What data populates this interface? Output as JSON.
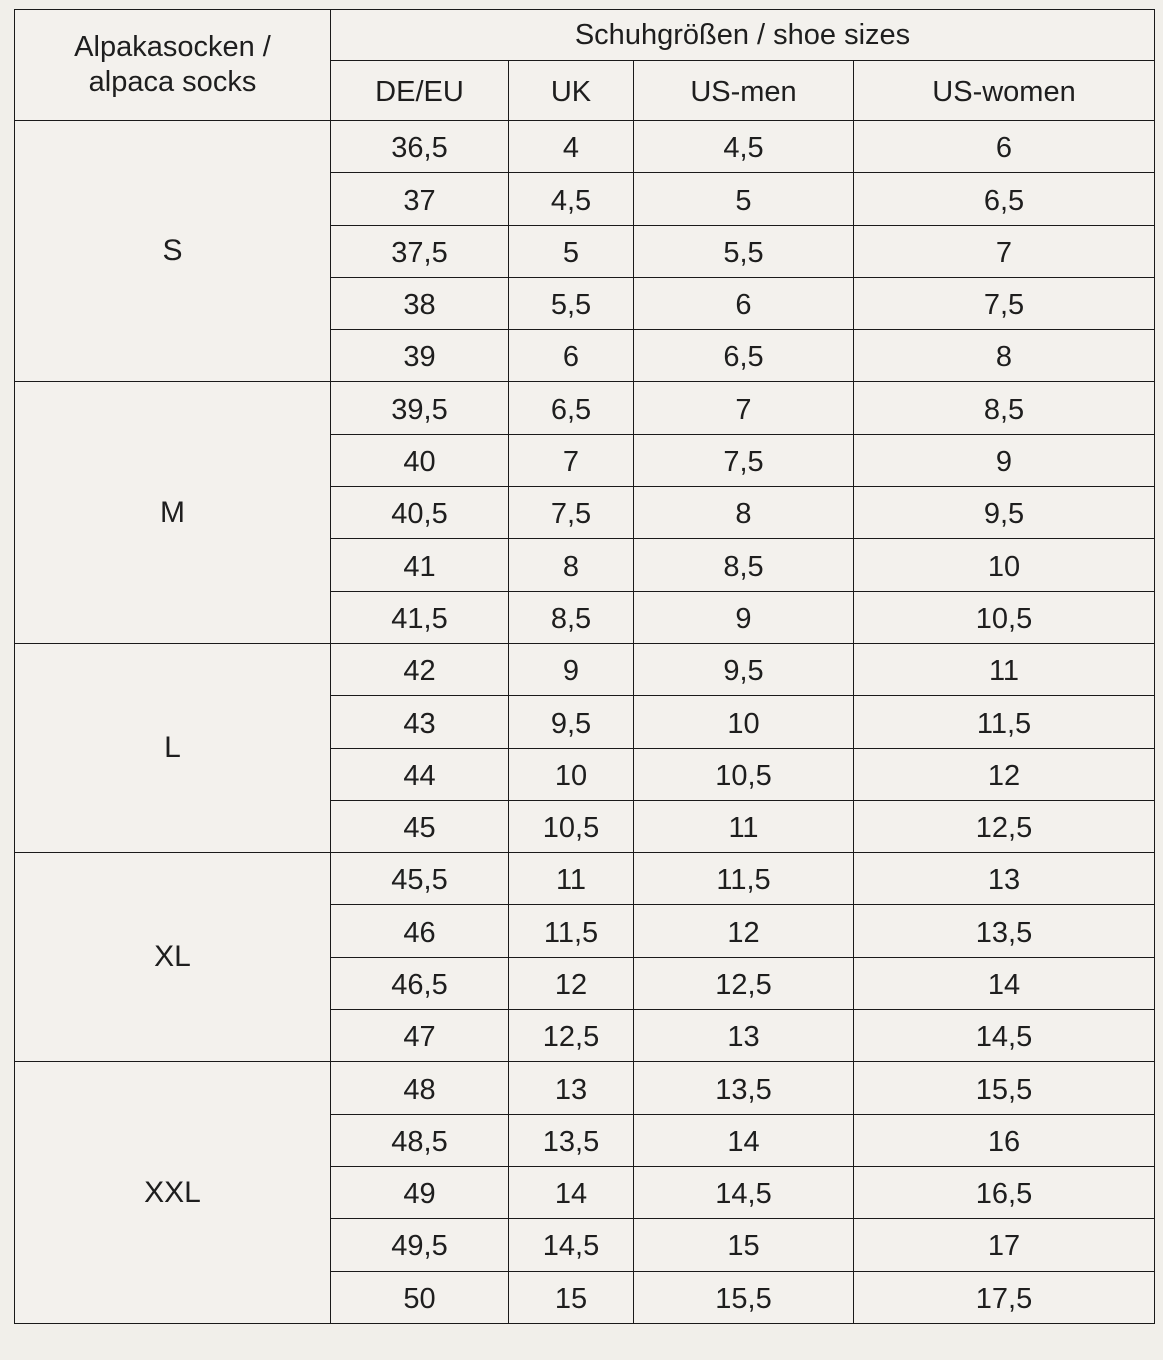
{
  "header": {
    "sock_col": "Alpakasocken / alpaca socks",
    "sock_col_line1": "Alpakasocken /",
    "sock_col_line2": "alpaca socks",
    "shoe_sizes": "Schuhgrößen / shoe sizes",
    "columns": [
      "DE/EU",
      "UK",
      "US-men",
      "US-women"
    ]
  },
  "groups": [
    {
      "size": "S",
      "rows": [
        [
          "36,5",
          "4",
          "4,5",
          "6"
        ],
        [
          "37",
          "4,5",
          "5",
          "6,5"
        ],
        [
          "37,5",
          "5",
          "5,5",
          "7"
        ],
        [
          "38",
          "5,5",
          "6",
          "7,5"
        ],
        [
          "39",
          "6",
          "6,5",
          "8"
        ]
      ]
    },
    {
      "size": "M",
      "rows": [
        [
          "39,5",
          "6,5",
          "7",
          "8,5"
        ],
        [
          "40",
          "7",
          "7,5",
          "9"
        ],
        [
          "40,5",
          "7,5",
          "8",
          "9,5"
        ],
        [
          "41",
          "8",
          "8,5",
          "10"
        ],
        [
          "41,5",
          "8,5",
          "9",
          "10,5"
        ]
      ]
    },
    {
      "size": "L",
      "rows": [
        [
          "42",
          "9",
          "9,5",
          "11"
        ],
        [
          "43",
          "9,5",
          "10",
          "11,5"
        ],
        [
          "44",
          "10",
          "10,5",
          "12"
        ],
        [
          "45",
          "10,5",
          "11",
          "12,5"
        ]
      ]
    },
    {
      "size": "XL",
      "rows": [
        [
          "45,5",
          "11",
          "11,5",
          "13"
        ],
        [
          "46",
          "11,5",
          "12",
          "13,5"
        ],
        [
          "46,5",
          "12",
          "12,5",
          "14"
        ],
        [
          "47",
          "12,5",
          "13",
          "14,5"
        ]
      ]
    },
    {
      "size": "XXL",
      "rows": [
        [
          "48",
          "13",
          "13,5",
          "15,5"
        ],
        [
          "48,5",
          "13,5",
          "14",
          "16"
        ],
        [
          "49",
          "14",
          "14,5",
          "16,5"
        ],
        [
          "49,5",
          "14,5",
          "15",
          "17"
        ],
        [
          "50",
          "15",
          "15,5",
          "17,5"
        ]
      ]
    }
  ]
}
